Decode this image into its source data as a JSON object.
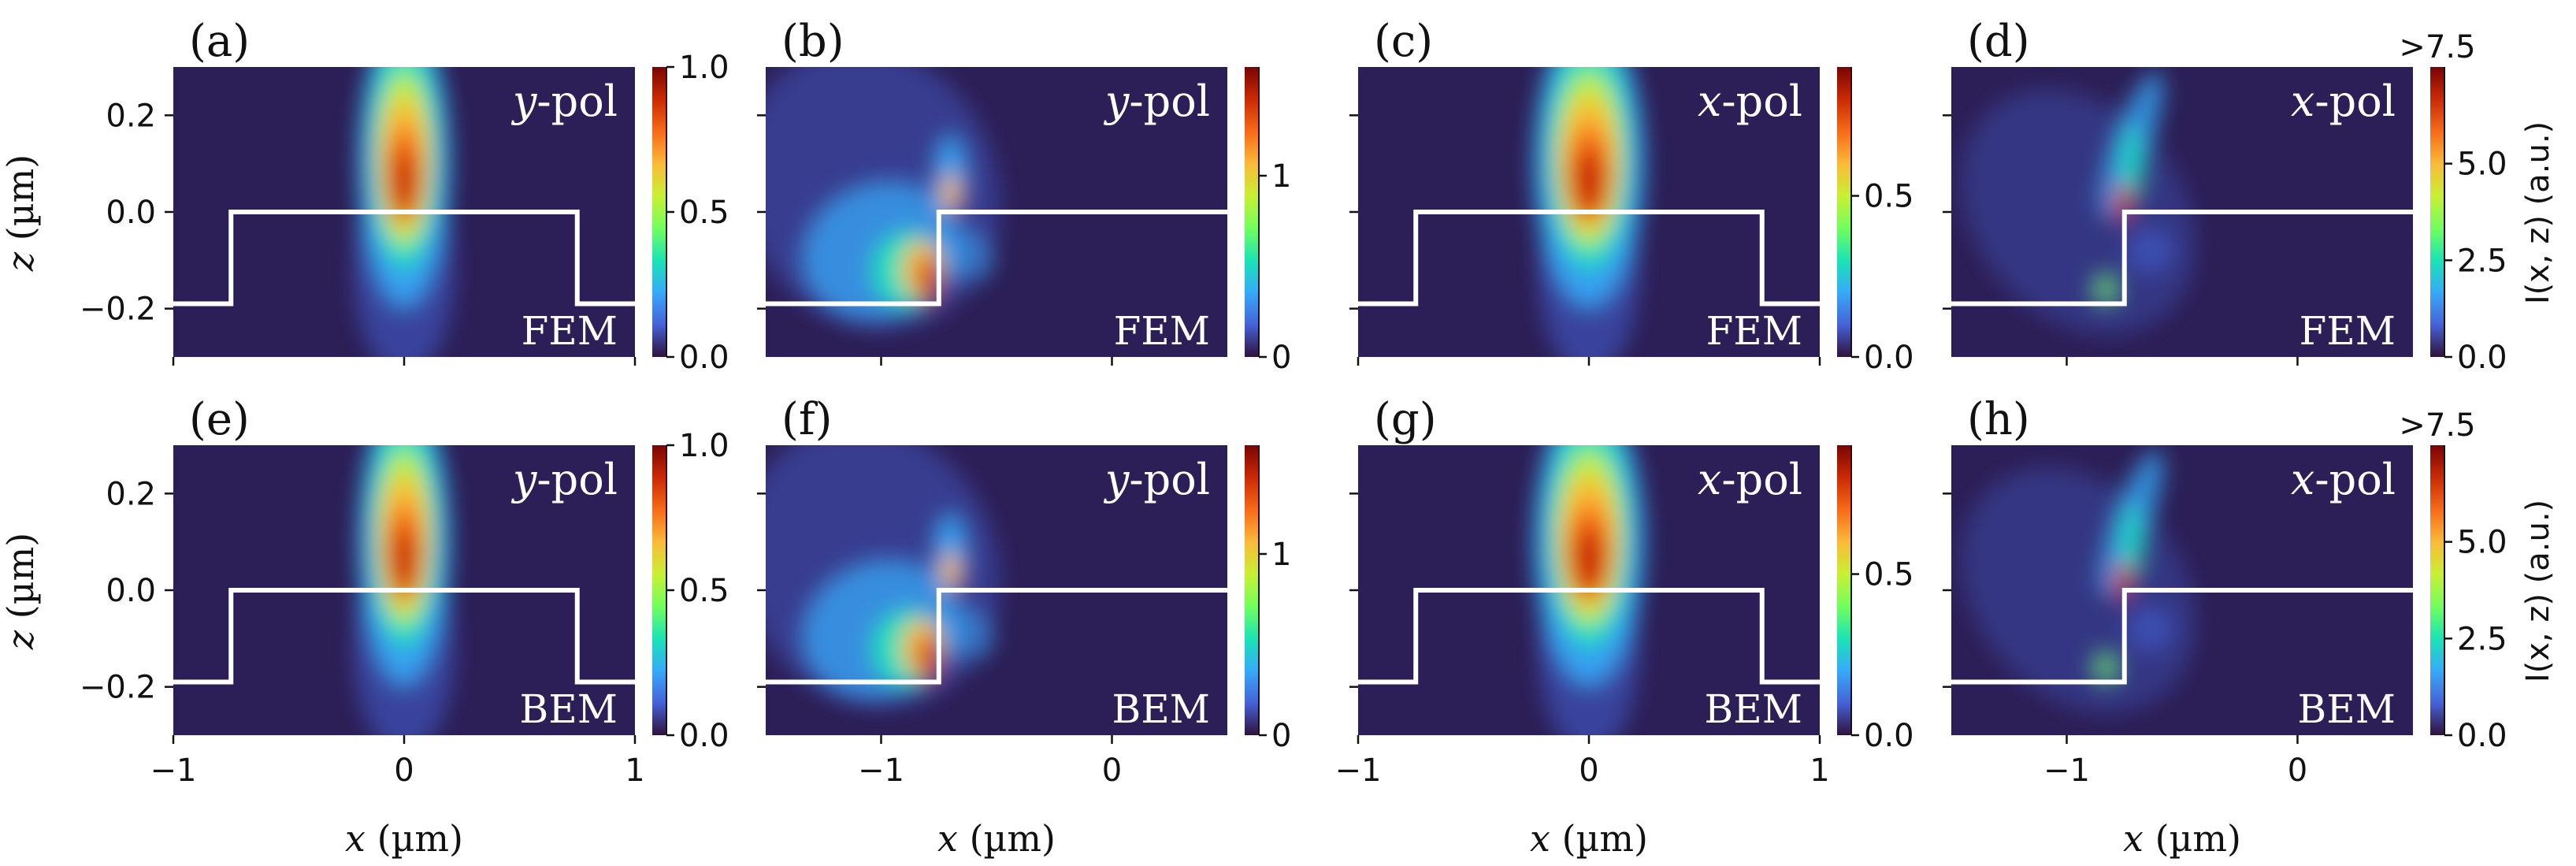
{
  "figure": {
    "xlabel_var": "x",
    "xlabel_unit": " (µm)",
    "ylabel_var": "z",
    "ylabel_unit": " (µm)",
    "cbar_label": "I(x, z) (a.u.)"
  },
  "chart_data": [
    {
      "type": "heatmap",
      "panel": "(a)",
      "pol_var": "y",
      "pol_suffix": "-pol",
      "method": "FEM",
      "xlim": [
        -1.0,
        1.0
      ],
      "ylim": [
        -0.3,
        0.3
      ],
      "xticks": [
        -1,
        0,
        1
      ],
      "xtick_labels": [
        "−1",
        "0",
        "1"
      ],
      "yticks": [
        0.2,
        0.0,
        -0.2
      ],
      "ytick_labels": [
        "0.2",
        "0.0",
        "−0.2"
      ],
      "clim": [
        0.0,
        1.0
      ],
      "cticks": [
        0.0,
        0.5,
        1.0
      ],
      "ctick_labels": [
        "0.0",
        "0.5",
        "1.0"
      ],
      "cbar_top_label": "",
      "beam": "normal",
      "grid": false
    },
    {
      "type": "heatmap",
      "panel": "(b)",
      "pol_var": "y",
      "pol_suffix": "-pol",
      "method": "FEM",
      "xlim": [
        -1.5,
        0.5
      ],
      "ylim": [
        -0.3,
        0.3
      ],
      "xticks": [
        -1,
        0
      ],
      "xtick_labels": [
        "−1",
        "0"
      ],
      "yticks": [
        0.2,
        0.0,
        -0.2
      ],
      "ytick_labels": [],
      "clim": [
        0.0,
        1.6
      ],
      "cticks": [
        0,
        1
      ],
      "ctick_labels": [
        "0",
        "1"
      ],
      "cbar_top_label": "",
      "beam": "edge-y",
      "grid": false
    },
    {
      "type": "heatmap",
      "panel": "(c)",
      "pol_var": "x",
      "pol_suffix": "-pol",
      "method": "FEM",
      "xlim": [
        -1.0,
        1.0
      ],
      "ylim": [
        -0.3,
        0.3
      ],
      "xticks": [
        -1,
        0,
        1
      ],
      "xtick_labels": [
        "−1",
        "0",
        "1"
      ],
      "yticks": [
        0.2,
        0.0,
        -0.2
      ],
      "ytick_labels": [],
      "clim": [
        0.0,
        0.9
      ],
      "cticks": [
        0.0,
        0.5
      ],
      "ctick_labels": [
        "0.0",
        "0.5"
      ],
      "cbar_top_label": "",
      "beam": "normal",
      "grid": false
    },
    {
      "type": "heatmap",
      "panel": "(d)",
      "pol_var": "x",
      "pol_suffix": "-pol",
      "method": "FEM",
      "xlim": [
        -1.5,
        0.5
      ],
      "ylim": [
        -0.3,
        0.3
      ],
      "xticks": [
        -1,
        0
      ],
      "xtick_labels": [
        "−1",
        "0"
      ],
      "yticks": [
        0.2,
        0.0,
        -0.2
      ],
      "ytick_labels": [],
      "clim": [
        0.0,
        7.5
      ],
      "cticks": [
        0.0,
        2.5,
        5.0
      ],
      "ctick_labels": [
        "0.0",
        "2.5",
        "5.0"
      ],
      "cbar_top_label": ">7.5",
      "beam": "edge-x",
      "grid": false
    },
    {
      "type": "heatmap",
      "panel": "(e)",
      "pol_var": "y",
      "pol_suffix": "-pol",
      "method": "BEM",
      "xlim": [
        -1.0,
        1.0
      ],
      "ylim": [
        -0.3,
        0.3
      ],
      "xticks": [
        -1,
        0,
        1
      ],
      "xtick_labels": [
        "−1",
        "0",
        "1"
      ],
      "yticks": [
        0.2,
        0.0,
        -0.2
      ],
      "ytick_labels": [
        "0.2",
        "0.0",
        "−0.2"
      ],
      "clim": [
        0.0,
        1.0
      ],
      "cticks": [
        0.0,
        0.5,
        1.0
      ],
      "ctick_labels": [
        "0.0",
        "0.5",
        "1.0"
      ],
      "cbar_top_label": "",
      "beam": "normal",
      "grid": false
    },
    {
      "type": "heatmap",
      "panel": "(f)",
      "pol_var": "y",
      "pol_suffix": "-pol",
      "method": "BEM",
      "xlim": [
        -1.5,
        0.5
      ],
      "ylim": [
        -0.3,
        0.3
      ],
      "xticks": [
        -1,
        0
      ],
      "xtick_labels": [
        "−1",
        "0"
      ],
      "yticks": [
        0.2,
        0.0,
        -0.2
      ],
      "ytick_labels": [],
      "clim": [
        0.0,
        1.6
      ],
      "cticks": [
        0,
        1
      ],
      "ctick_labels": [
        "0",
        "1"
      ],
      "cbar_top_label": "",
      "beam": "edge-y",
      "grid": false
    },
    {
      "type": "heatmap",
      "panel": "(g)",
      "pol_var": "x",
      "pol_suffix": "-pol",
      "method": "BEM",
      "xlim": [
        -1.0,
        1.0
      ],
      "ylim": [
        -0.3,
        0.3
      ],
      "xticks": [
        -1,
        0,
        1
      ],
      "xtick_labels": [
        "−1",
        "0",
        "1"
      ],
      "yticks": [
        0.2,
        0.0,
        -0.2
      ],
      "ytick_labels": [],
      "clim": [
        0.0,
        0.9
      ],
      "cticks": [
        0.0,
        0.5
      ],
      "ctick_labels": [
        "0.0",
        "0.5"
      ],
      "cbar_top_label": "",
      "beam": "normal",
      "grid": false
    },
    {
      "type": "heatmap",
      "panel": "(h)",
      "pol_var": "x",
      "pol_suffix": "-pol",
      "method": "BEM",
      "xlim": [
        -1.5,
        0.5
      ],
      "ylim": [
        -0.3,
        0.3
      ],
      "xticks": [
        -1,
        0
      ],
      "xtick_labels": [
        "−1",
        "0"
      ],
      "yticks": [
        0.2,
        0.0,
        -0.2
      ],
      "ytick_labels": [],
      "clim": [
        0.0,
        7.5
      ],
      "cticks": [
        0.0,
        2.5,
        5.0
      ],
      "ctick_labels": [
        "0.0",
        "2.5",
        "5.0"
      ],
      "cbar_top_label": ">7.5",
      "beam": "edge-x",
      "grid": false
    }
  ],
  "structure": {
    "top_z": 0.0,
    "bottom_z": -0.19,
    "ridge_x": [
      -0.75,
      0.75
    ]
  },
  "colors": {
    "background": "#2c1e56",
    "profile_line": "#ffffff",
    "colormap": [
      "#30123b",
      "#4662d7",
      "#36aaf9",
      "#1ae4b6",
      "#72fe5e",
      "#c8ef34",
      "#faba39",
      "#f66b19",
      "#ca2a04",
      "#7a0403"
    ]
  }
}
